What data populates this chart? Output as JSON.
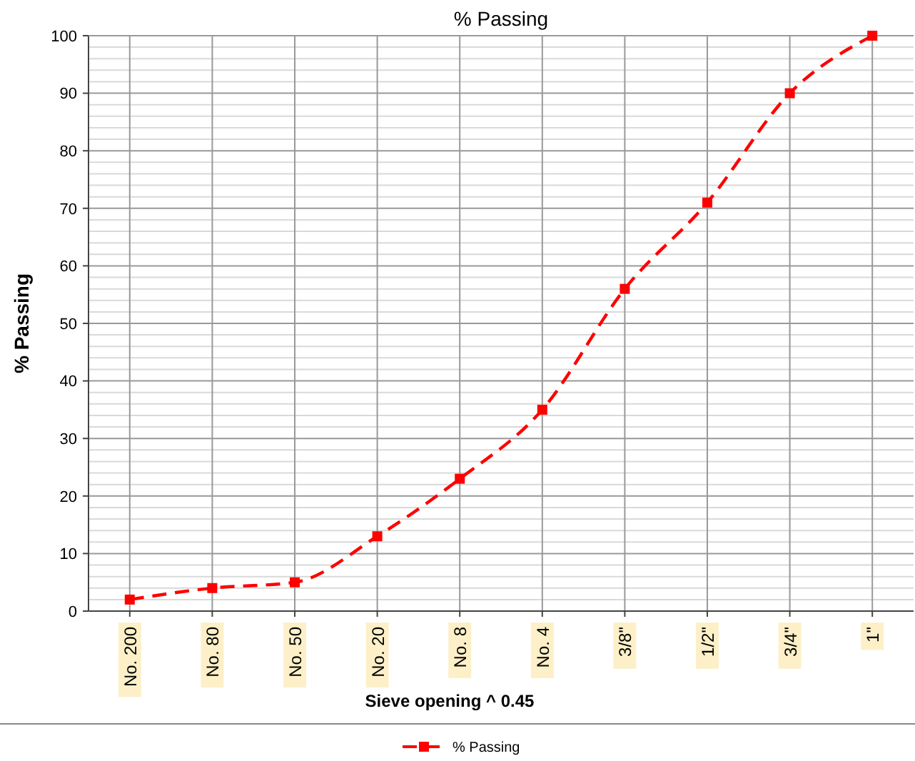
{
  "chart_data": {
    "type": "line",
    "title": "% Passing",
    "xlabel": "Sieve opening ^ 0.45",
    "ylabel": "% Passing",
    "categories": [
      "No. 200",
      "No. 80",
      "No. 50",
      "No. 20",
      "No. 8",
      "No. 4",
      "3/8\"",
      "1/2\"",
      "3/4\"",
      "1\""
    ],
    "series": [
      {
        "name": "% Passing",
        "color": "#ff0000",
        "values": [
          2,
          4,
          5,
          13,
          23,
          35,
          56,
          71,
          90,
          100
        ]
      }
    ],
    "ylim": [
      0,
      100
    ],
    "yticks": [
      0,
      {
        "value": 2,
        "label": null
      },
      {
        "value": 4,
        "label": null
      },
      {
        "value": 6,
        "label": null
      },
      {
        "value": 8,
        "label": null
      },
      10,
      {
        "value": 12,
        "label": null
      },
      {
        "value": 14,
        "label": null
      },
      {
        "value": 16,
        "label": null
      },
      {
        "value": 18,
        "label": null
      },
      20,
      {
        "value": 22,
        "label": null
      },
      {
        "value": 24,
        "label": null
      },
      {
        "value": 26,
        "label": null
      },
      {
        "value": 28,
        "label": null
      },
      30,
      {
        "value": 32,
        "label": null
      },
      {
        "value": 34,
        "label": null
      },
      {
        "value": 36,
        "label": null
      },
      {
        "value": 38,
        "label": null
      },
      40,
      {
        "value": 42,
        "label": null
      },
      {
        "value": 44,
        "label": null
      },
      {
        "value": 46,
        "label": null
      },
      {
        "value": 48,
        "label": null
      },
      50,
      {
        "value": 52,
        "label": null
      },
      {
        "value": 54,
        "label": null
      },
      {
        "value": 56,
        "label": null
      },
      {
        "value": 58,
        "label": null
      },
      60,
      {
        "value": 62,
        "label": null
      },
      {
        "value": 64,
        "label": null
      },
      {
        "value": 66,
        "label": null
      },
      {
        "value": 68,
        "label": null
      },
      70,
      {
        "value": 72,
        "label": null
      },
      {
        "value": 74,
        "label": null
      },
      {
        "value": 76,
        "label": null
      },
      {
        "value": 78,
        "label": null
      },
      80,
      {
        "value": 82,
        "label": null
      },
      {
        "value": 84,
        "label": null
      },
      {
        "value": 86,
        "label": null
      },
      {
        "value": 88,
        "label": null
      },
      90,
      {
        "value": 92,
        "label": null
      },
      {
        "value": 94,
        "label": null
      },
      {
        "value": 96,
        "label": null
      },
      {
        "value": 98,
        "label": null
      },
      100
    ],
    "grid": true,
    "legend": "bottom",
    "marker": "square",
    "line_style": "dashed"
  }
}
